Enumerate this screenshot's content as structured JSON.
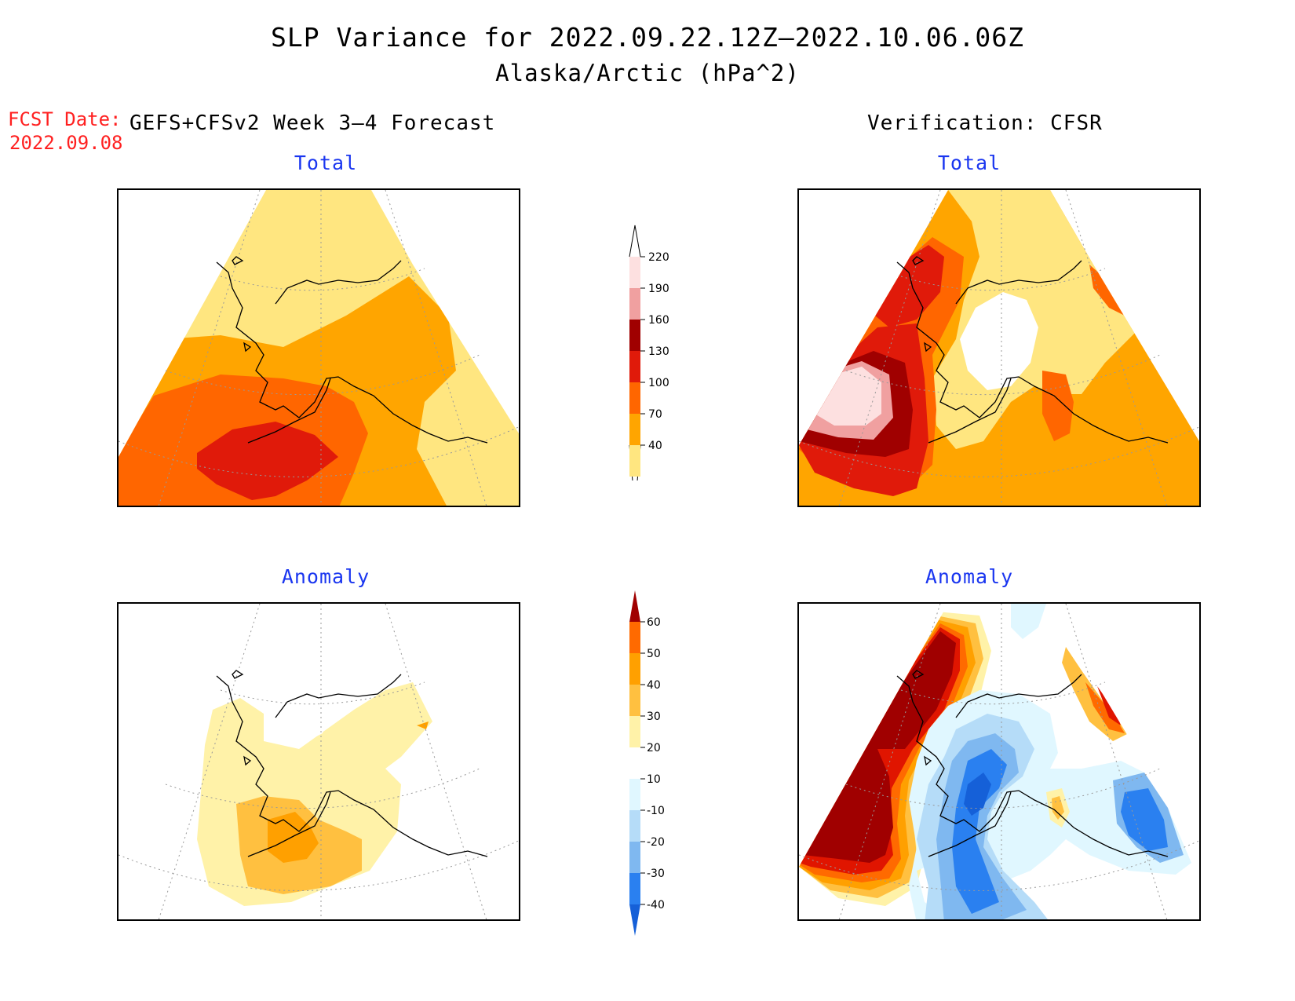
{
  "title": {
    "line1": "SLP Variance for 2022.09.22.12Z–2022.10.06.06Z",
    "line2": "Alaska/Arctic (hPa^2)"
  },
  "fcst_date": {
    "label": "FCST Date:",
    "value": "2022.09.08"
  },
  "columns": {
    "forecast": "GEFS+CFSv2 Week 3–4 Forecast",
    "verification": "Verification: CFSR"
  },
  "panels": {
    "fcst_total": "Total",
    "verif_total": "Total",
    "fcst_anom": "Anomaly",
    "verif_anom": "Anomaly"
  },
  "total_colorbar": {
    "levels": [
      "40",
      "70",
      "100",
      "130",
      "160",
      "190",
      "220"
    ],
    "colors": [
      "#ffe680",
      "#ffa500",
      "#ff6600",
      "#e01a0a",
      "#a00000",
      "#f0a0a0",
      "#fde0e0"
    ]
  },
  "anomaly_colorbar": {
    "levels": [
      "-40",
      "-30",
      "-20",
      "-10",
      "10",
      "20",
      "30",
      "40",
      "50",
      "60"
    ],
    "colors": [
      "#1560d8",
      "#2a80f0",
      "#7fb8f0",
      "#b5dcf8",
      "#e0f7ff",
      "#ffffff",
      "#fff2a8",
      "#ffc040",
      "#ffa000",
      "#ff6a00",
      "#e01500",
      "#a00000"
    ]
  }
}
